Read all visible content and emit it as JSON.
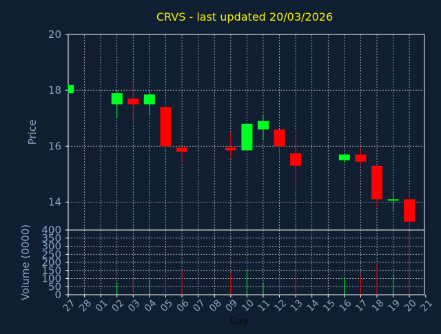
{
  "chart_data": [
    {
      "type": "candlestick",
      "panel": "price",
      "title": "CRVS - last updated 20/03/2026",
      "ylabel": "Price",
      "ylim": [
        13,
        20
      ],
      "yticks": [
        14,
        16,
        18,
        20
      ],
      "grid": true,
      "candles": [
        {
          "day": "27",
          "open": 17.9,
          "high": 18.2,
          "low": 17.9,
          "close": 18.2
        },
        {
          "day": "02",
          "open": 17.5,
          "high": 18.0,
          "low": 17.0,
          "close": 17.9
        },
        {
          "day": "03",
          "open": 17.7,
          "high": 18.3,
          "low": 16.8,
          "close": 17.5
        },
        {
          "day": "04",
          "open": 17.5,
          "high": 18.0,
          "low": 17.1,
          "close": 17.85
        },
        {
          "day": "05",
          "open": 17.4,
          "high": 17.6,
          "low": 15.9,
          "close": 16.0
        },
        {
          "day": "06",
          "open": 15.95,
          "high": 16.0,
          "low": 15.4,
          "close": 15.8
        },
        {
          "day": "09",
          "open": 15.95,
          "high": 16.5,
          "low": 15.6,
          "close": 15.85
        },
        {
          "day": "10",
          "open": 15.85,
          "high": 16.8,
          "low": 15.85,
          "close": 16.8
        },
        {
          "day": "11",
          "open": 16.6,
          "high": 17.1,
          "low": 16.2,
          "close": 16.9
        },
        {
          "day": "12",
          "open": 16.6,
          "high": 16.6,
          "low": 15.5,
          "close": 16.0
        },
        {
          "day": "13",
          "open": 15.75,
          "high": 16.45,
          "low": 14.6,
          "close": 15.3
        },
        {
          "day": "16",
          "open": 15.5,
          "high": 15.75,
          "low": 15.4,
          "close": 15.7
        },
        {
          "day": "17",
          "open": 15.7,
          "high": 15.95,
          "low": 15.3,
          "close": 15.45
        },
        {
          "day": "18",
          "open": 15.3,
          "high": 15.3,
          "low": 13.8,
          "close": 14.1
        },
        {
          "day": "19",
          "open": 14.05,
          "high": 14.4,
          "low": 13.7,
          "close": 14.1
        },
        {
          "day": "20",
          "open": 14.1,
          "high": 14.4,
          "low": 12.9,
          "close": 13.3
        }
      ]
    },
    {
      "type": "bar",
      "panel": "volume",
      "ylabel": "Volume (0000)",
      "xlabel": "Day",
      "ylim": [
        0,
        400
      ],
      "yticks": [
        0,
        50,
        100,
        150,
        200,
        250,
        300,
        350,
        400
      ],
      "grid": true,
      "categories": [
        "27",
        "28",
        "01",
        "02",
        "03",
        "04",
        "05",
        "06",
        "07",
        "08",
        "09",
        "10",
        "11",
        "12",
        "13",
        "14",
        "15",
        "16",
        "17",
        "18",
        "19",
        "20",
        "21"
      ],
      "values": [
        {
          "day": "02",
          "volume": 75,
          "direction": "up"
        },
        {
          "day": "03",
          "volume": 100,
          "direction": "down"
        },
        {
          "day": "04",
          "volume": 95,
          "direction": "up"
        },
        {
          "day": "05",
          "volume": 130,
          "direction": "down"
        },
        {
          "day": "06",
          "volume": 150,
          "direction": "down"
        },
        {
          "day": "09",
          "volume": 135,
          "direction": "down"
        },
        {
          "day": "10",
          "volume": 150,
          "direction": "up"
        },
        {
          "day": "11",
          "volume": 75,
          "direction": "up"
        },
        {
          "day": "12",
          "volume": 115,
          "direction": "down"
        },
        {
          "day": "13",
          "volume": 125,
          "direction": "down"
        },
        {
          "day": "16",
          "volume": 105,
          "direction": "up"
        },
        {
          "day": "17",
          "volume": 120,
          "direction": "down"
        },
        {
          "day": "18",
          "volume": 195,
          "direction": "down"
        },
        {
          "day": "19",
          "volume": 125,
          "direction": "up"
        },
        {
          "day": "20",
          "volume": 390,
          "direction": "down"
        }
      ]
    }
  ],
  "colors": {
    "background": "#0f1f31",
    "plot_background": "#0f1f31",
    "up": "#00ff22",
    "down": "#ff0000",
    "grid": "#ffffff",
    "axis": "#ffffff",
    "label": "#8aa2c4",
    "title": "#f2f200"
  }
}
